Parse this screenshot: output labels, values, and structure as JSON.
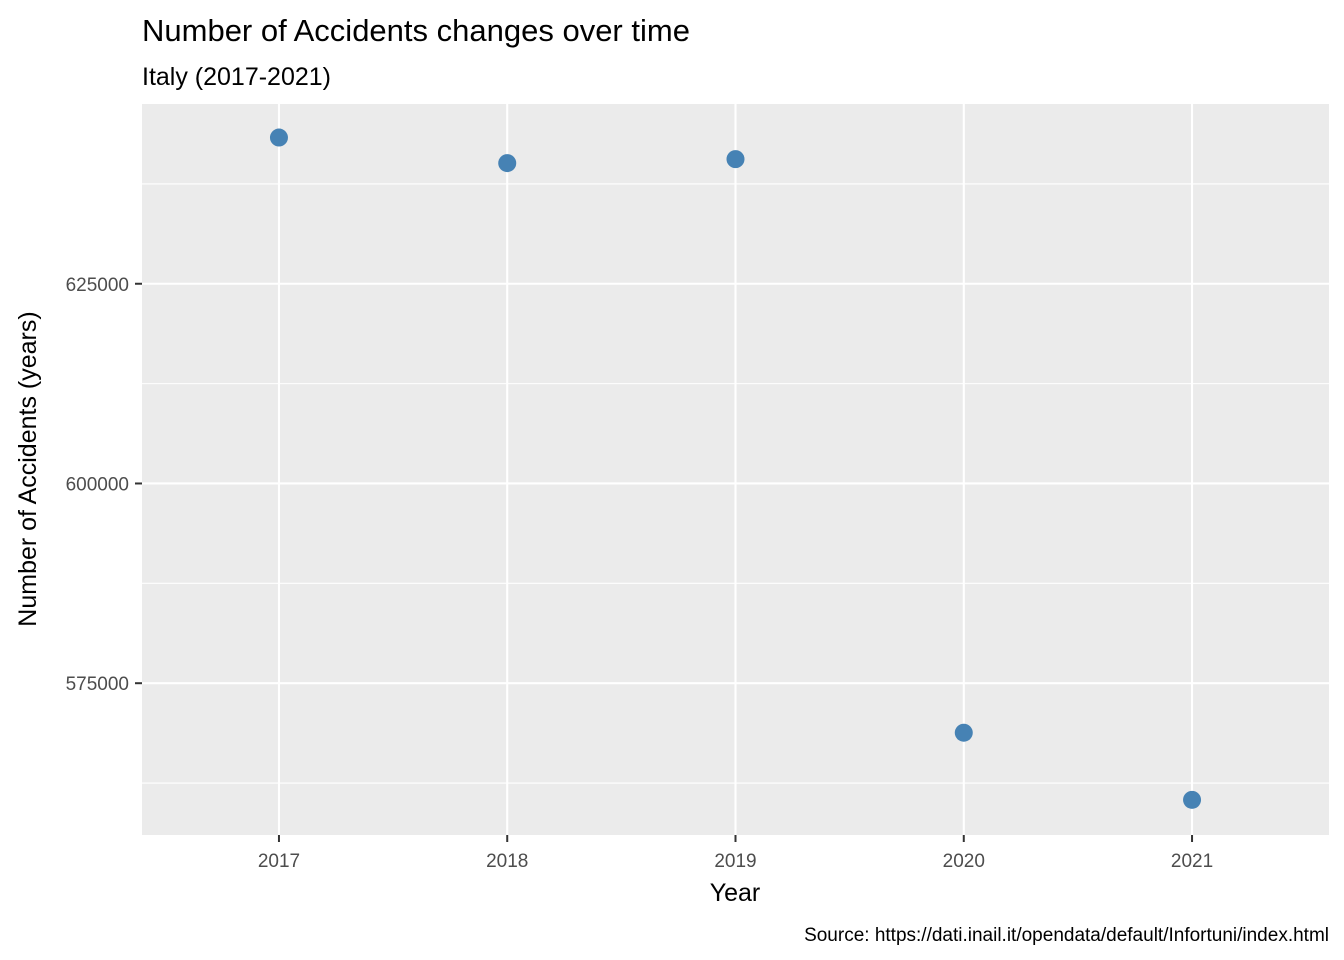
{
  "chart_data": {
    "type": "scatter",
    "title": "Number of Accidents changes over time",
    "subtitle": "Italy (2017-2021)",
    "xlabel": "Year",
    "ylabel": "Number of Accidents (years)",
    "caption": "Source: https://dati.inail.it/opendata/default/Infortuni/index.html",
    "x": [
      "2017",
      "2018",
      "2019",
      "2020",
      "2021"
    ],
    "y": [
      643300,
      640100,
      640600,
      568800,
      560400
    ],
    "y_ticks": [
      "575000",
      "600000",
      "625000"
    ],
    "y_tick_values": [
      575000,
      600000,
      625000
    ],
    "y_minor_values": [
      562500,
      587500,
      612500,
      637500
    ],
    "ylim": [
      556000,
      647500
    ],
    "grid": true,
    "legend": "none",
    "point_color": "#4682b4",
    "panel_color": "#ebebeb",
    "grid_color": "#ffffff"
  }
}
